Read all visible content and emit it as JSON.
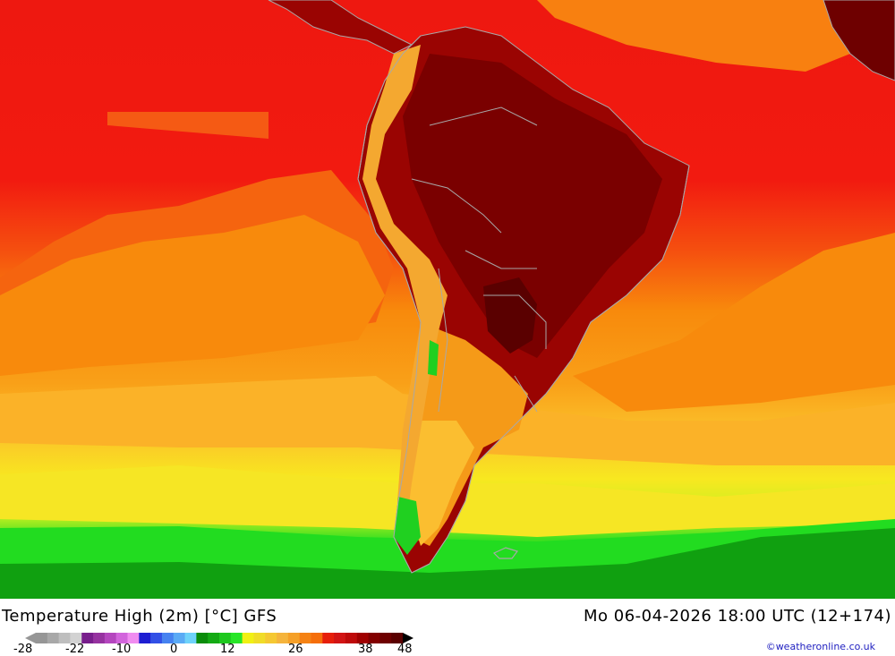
{
  "map": {
    "colors": {
      "ocean_dark_red": "#e81010",
      "red": "#f21a10",
      "orange_red": "#f55a14",
      "orange": "#f8900c",
      "light_orange": "#fbb020",
      "yellow_orange": "#fbc82c",
      "yellow": "#f8f020",
      "lime": "#b0f020",
      "green": "#20e020",
      "dark_green": "#10a010",
      "land_dark": "#7a0000",
      "land_deep": "#5a0000",
      "andes": "#f4b040",
      "border": "#a8a8a8"
    }
  },
  "footer": {
    "title_left": "Temperature High (2m) [°C] GFS",
    "title_right": "Mo 06-04-2026 18:00 UTC (12+174)",
    "credit": "©weatheronline.co.uk"
  },
  "legend": {
    "ticks": [
      "-28",
      "-22",
      "-10",
      "0",
      "12",
      "26",
      "38",
      "48"
    ],
    "colors": [
      "#969696",
      "#a8a8a8",
      "#bebebe",
      "#d2d2d2",
      "#781e8c",
      "#9632a0",
      "#b446be",
      "#d264dc",
      "#f08cf0",
      "#1e1ed2",
      "#3250e6",
      "#4682f0",
      "#5aaaf5",
      "#6ed2fa",
      "#0a8c0a",
      "#14aa14",
      "#1ec81e",
      "#28e628",
      "#f0f014",
      "#f0dc28",
      "#f5c832",
      "#f5b43c",
      "#f5a028",
      "#f58214",
      "#f56e0a",
      "#e61e0a",
      "#d21414",
      "#be0a0a",
      "#a00000",
      "#820000",
      "#6e0000",
      "#5a0000"
    ]
  }
}
